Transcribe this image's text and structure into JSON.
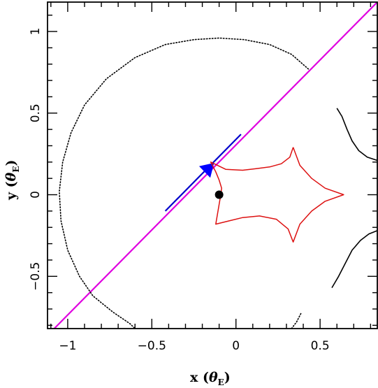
{
  "chart_data": {
    "type": "line",
    "title": "",
    "xlabel": {
      "main": "x",
      "symbol": "θ",
      "subscript": "E"
    },
    "ylabel": {
      "main": "y",
      "symbol": "θ",
      "subscript": "E"
    },
    "xlim": [
      -1.12,
      0.84
    ],
    "ylim": [
      -0.82,
      1.18
    ],
    "xticks": [
      {
        "value": -1,
        "label": "−1"
      },
      {
        "value": -0.5,
        "label": "−0.5"
      },
      {
        "value": 0,
        "label": "0"
      },
      {
        "value": 0.5,
        "label": "0.5"
      }
    ],
    "yticks": [
      {
        "value": -0.5,
        "label": "−0.5"
      },
      {
        "value": 0,
        "label": "0"
      },
      {
        "value": 0.5,
        "label": "0.5"
      },
      {
        "value": 1,
        "label": "1"
      }
    ],
    "grid": false,
    "legend": "none",
    "colors": {
      "source_track": "#e000e0",
      "track_highlight": "#0000cc",
      "arrow": "#0000ff",
      "caustic": "#dd1111",
      "critical_curve": "#000000",
      "lens": "#000000"
    },
    "series": [
      {
        "style": "line",
        "points": [
          [
            -1.08,
            -0.82
          ],
          [
            0.84,
            1.18
          ]
        ]
      },
      {
        "style": "line",
        "points": [
          [
            -0.42,
            -0.1
          ],
          [
            0.03,
            0.37
          ]
        ]
      },
      {
        "style": "arrow",
        "points": [
          [
            -0.13,
            0.195
          ],
          [
            -0.155,
            0.17
          ]
        ]
      },
      {
        "style": "dotted",
        "points": [
          [
            0.43,
            0.77
          ],
          [
            0.33,
            0.86
          ],
          [
            0.2,
            0.92
          ],
          [
            0.05,
            0.95
          ],
          [
            -0.1,
            0.96
          ],
          [
            -0.25,
            0.95
          ],
          [
            -0.42,
            0.92
          ],
          [
            -0.6,
            0.84
          ],
          [
            -0.77,
            0.71
          ],
          [
            -0.9,
            0.55
          ],
          [
            -0.98,
            0.38
          ],
          [
            -1.03,
            0.2
          ],
          [
            -1.05,
            0.02
          ],
          [
            -1.04,
            -0.16
          ],
          [
            -1.0,
            -0.34
          ],
          [
            -0.93,
            -0.5
          ],
          [
            -0.85,
            -0.62
          ],
          [
            -0.73,
            -0.72
          ],
          [
            -0.63,
            -0.79
          ],
          [
            -0.6,
            -0.82
          ]
        ]
      },
      {
        "style": "dotted",
        "points": [
          [
            0.33,
            -0.82
          ],
          [
            0.36,
            -0.78
          ],
          [
            0.39,
            -0.72
          ]
        ]
      },
      {
        "style": "line",
        "points": [
          [
            0.6,
            0.53
          ],
          [
            0.63,
            0.48
          ],
          [
            0.66,
            0.4
          ],
          [
            0.69,
            0.33
          ],
          [
            0.73,
            0.27
          ],
          [
            0.78,
            0.23
          ],
          [
            0.84,
            0.21
          ]
        ]
      },
      {
        "style": "line",
        "points": [
          [
            0.57,
            -0.57
          ],
          [
            0.61,
            -0.5
          ],
          [
            0.65,
            -0.42
          ],
          [
            0.69,
            -0.34
          ],
          [
            0.74,
            -0.28
          ],
          [
            0.79,
            -0.24
          ],
          [
            0.84,
            -0.22
          ]
        ]
      },
      {
        "style": "caustic",
        "points": [
          [
            0.34,
            0.29
          ],
          [
            0.38,
            0.18
          ],
          [
            0.45,
            0.1
          ],
          [
            0.53,
            0.04
          ],
          [
            0.64,
            0.0
          ],
          [
            0.53,
            -0.04
          ],
          [
            0.45,
            -0.1
          ],
          [
            0.38,
            -0.18
          ],
          [
            0.34,
            -0.29
          ],
          [
            0.31,
            -0.21
          ],
          [
            0.24,
            -0.15
          ],
          [
            0.14,
            -0.13
          ],
          [
            0.04,
            -0.14
          ],
          [
            -0.04,
            -0.16
          ],
          [
            -0.12,
            -0.18
          ],
          [
            -0.11,
            -0.12
          ],
          [
            -0.1,
            -0.06
          ],
          [
            -0.09,
            0.0
          ],
          [
            -0.085,
            0.04
          ],
          [
            -0.1,
            0.09
          ],
          [
            -0.12,
            0.14
          ],
          [
            -0.15,
            0.2
          ],
          [
            -0.06,
            0.155
          ],
          [
            0.04,
            0.15
          ],
          [
            0.12,
            0.16
          ],
          [
            0.2,
            0.17
          ],
          [
            0.27,
            0.19
          ],
          [
            0.32,
            0.23
          ],
          [
            0.34,
            0.29
          ]
        ]
      },
      {
        "style": "marker",
        "points": [
          [
            -0.1,
            0.0
          ]
        ]
      }
    ]
  }
}
